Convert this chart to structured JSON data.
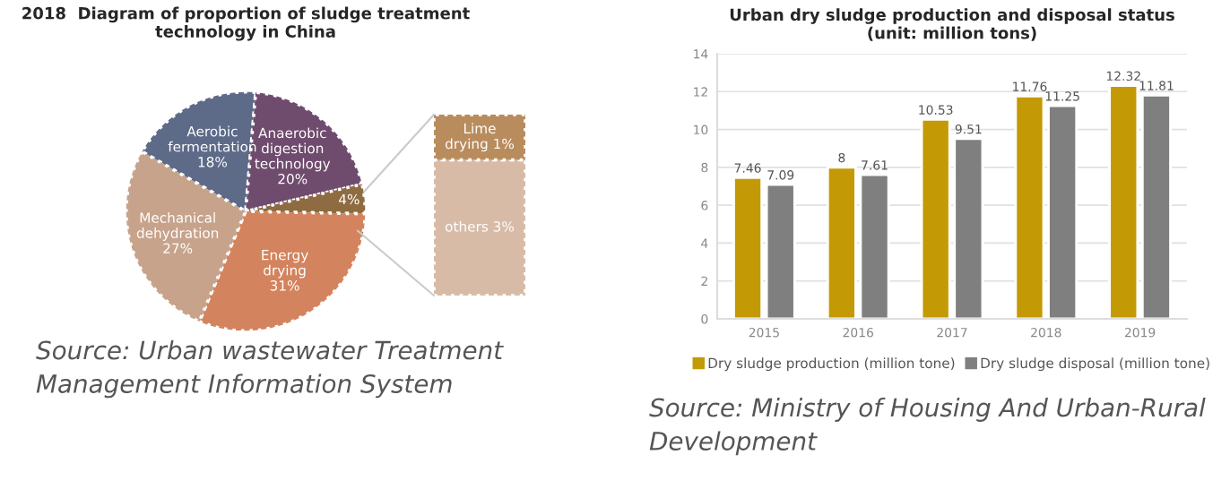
{
  "chart_data": [
    {
      "type": "pie",
      "title": "2018  Diagram of proportion of sludge treatment technology in China",
      "categories": [
        "Aerobic fermentation 18%",
        "Anaerobic digestion technology 20%",
        "4%",
        "Energy drying 31%",
        "Mechanical dehydration 27%"
      ],
      "values": [
        18,
        20,
        4,
        31,
        27
      ],
      "colors": [
        "#5d6a88",
        "#6f4b6e",
        "#8e6b40",
        "#d3845e",
        "#c7a38b"
      ],
      "annotations": [
        "Source: Urban wastewater Treatment Management Information System"
      ]
    },
    {
      "type": "bar",
      "stacked": true,
      "categories": [
        null
      ],
      "series": [
        {
          "color": "#d8bba7",
          "values": [
            3
          ],
          "value_labels": [
            "others 3%"
          ]
        },
        {
          "color": "#b98c5e",
          "values": [
            1
          ],
          "value_labels": [
            "Lime drying 1%"
          ]
        }
      ]
    },
    {
      "type": "bar",
      "title": "Urban dry sludge production and disposal status\n(unit: million tons)",
      "categories": [
        "2015",
        "2016",
        "2017",
        "2018",
        "2019"
      ],
      "series": [
        {
          "name": "Dry sludge production (million tone)",
          "color": "#c39a05",
          "values": [
            7.46,
            8,
            10.53,
            11.76,
            12.32
          ]
        },
        {
          "name": "Dry sludge disposal (million tone)",
          "color": "#7f7f7f",
          "values": [
            7.09,
            7.61,
            9.51,
            11.25,
            11.81
          ]
        }
      ],
      "ylim": [
        0,
        14
      ],
      "yticks": [
        0,
        2,
        4,
        6,
        8,
        10,
        12,
        14
      ],
      "grid": "y",
      "legend": "bottom",
      "data_labels": true,
      "annotations": [
        "Source: Ministry of Housing And Urban-Rural Development"
      ]
    }
  ]
}
